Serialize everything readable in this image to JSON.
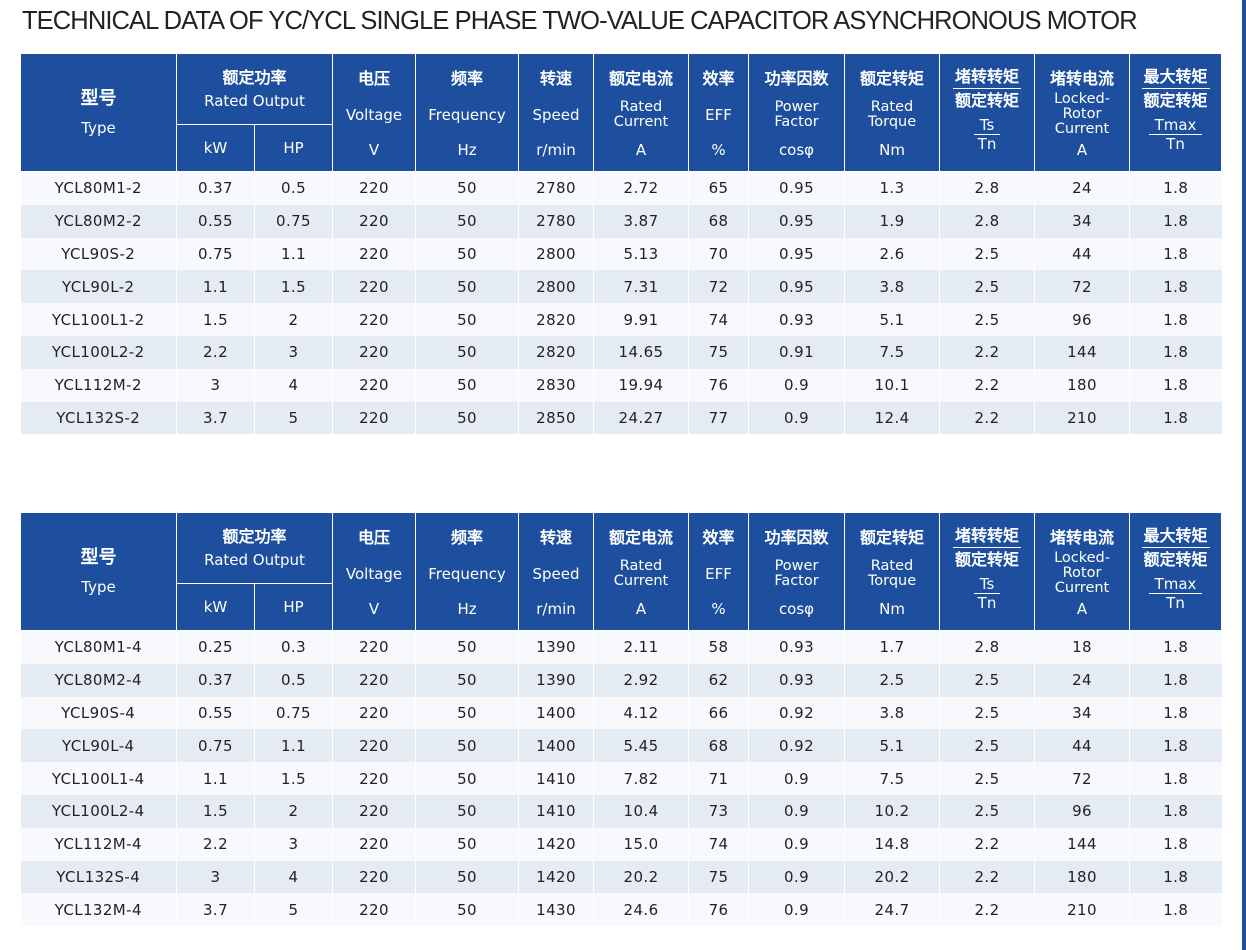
{
  "title": "TECHNICAL DATA OF YC/YCL SINGLE PHASE TWO-VALUE CAPACITOR ASYNCHRONOUS MOTOR",
  "header": {
    "type_zh": "型号",
    "type_en": "Type",
    "rated_output_zh": "额定功率",
    "rated_output_en": "Rated Output",
    "kw": "kW",
    "hp": "HP",
    "voltage_zh": "电压",
    "voltage_en": "Voltage",
    "voltage_unit": "V",
    "frequency_zh": "频率",
    "frequency_en": "Frequency",
    "frequency_unit": "Hz",
    "speed_zh": "转速",
    "speed_en": "Speed",
    "speed_unit": "r/min",
    "current_zh": "额定电流",
    "current_en_1": "Rated",
    "current_en_2": "Current",
    "current_unit": "A",
    "eff_zh": "效率",
    "eff_en": "EFF",
    "eff_unit": "%",
    "pf_zh": "功率因数",
    "pf_en_1": "Power",
    "pf_en_2": "Factor",
    "pf_unit": "cosφ",
    "torque_zh": "额定转矩",
    "torque_en_1": "Rated",
    "torque_en_2": "Torque",
    "torque_unit": "Nm",
    "ts_zh_1": "堵转转矩",
    "ts_zh_2": "额定转矩",
    "ts_num": "Ts",
    "ts_den": "Tn",
    "lrc_zh": "堵转电流",
    "lrc_en_1": "Locked-",
    "lrc_en_2": "Rotor",
    "lrc_en_3": "Current",
    "lrc_unit": "A",
    "tmax_zh_1": "最大转矩",
    "tmax_zh_2": "额定转矩",
    "tmax_num": "Tmax",
    "tmax_den": "Tn"
  },
  "tables": [
    {
      "rows": [
        [
          "YCL80M1-2",
          "0.37",
          "0.5",
          "220",
          "50",
          "2780",
          "2.72",
          "65",
          "0.95",
          "1.3",
          "2.8",
          "24",
          "1.8"
        ],
        [
          "YCL80M2-2",
          "0.55",
          "0.75",
          "220",
          "50",
          "2780",
          "3.87",
          "68",
          "0.95",
          "1.9",
          "2.8",
          "34",
          "1.8"
        ],
        [
          "YCL90S-2",
          "0.75",
          "1.1",
          "220",
          "50",
          "2800",
          "5.13",
          "70",
          "0.95",
          "2.6",
          "2.5",
          "44",
          "1.8"
        ],
        [
          "YCL90L-2",
          "1.1",
          "1.5",
          "220",
          "50",
          "2800",
          "7.31",
          "72",
          "0.95",
          "3.8",
          "2.5",
          "72",
          "1.8"
        ],
        [
          "YCL100L1-2",
          "1.5",
          "2",
          "220",
          "50",
          "2820",
          "9.91",
          "74",
          "0.93",
          "5.1",
          "2.5",
          "96",
          "1.8"
        ],
        [
          "YCL100L2-2",
          "2.2",
          "3",
          "220",
          "50",
          "2820",
          "14.65",
          "75",
          "0.91",
          "7.5",
          "2.2",
          "144",
          "1.8"
        ],
        [
          "YCL112M-2",
          "3",
          "4",
          "220",
          "50",
          "2830",
          "19.94",
          "76",
          "0.9",
          "10.1",
          "2.2",
          "180",
          "1.8"
        ],
        [
          "YCL132S-2",
          "3.7",
          "5",
          "220",
          "50",
          "2850",
          "24.27",
          "77",
          "0.9",
          "12.4",
          "2.2",
          "210",
          "1.8"
        ]
      ]
    },
    {
      "rows": [
        [
          "YCL80M1-4",
          "0.25",
          "0.3",
          "220",
          "50",
          "1390",
          "2.11",
          "58",
          "0.93",
          "1.7",
          "2.8",
          "18",
          "1.8"
        ],
        [
          "YCL80M2-4",
          "0.37",
          "0.5",
          "220",
          "50",
          "1390",
          "2.92",
          "62",
          "0.93",
          "2.5",
          "2.5",
          "24",
          "1.8"
        ],
        [
          "YCL90S-4",
          "0.55",
          "0.75",
          "220",
          "50",
          "1400",
          "4.12",
          "66",
          "0.92",
          "3.8",
          "2.5",
          "34",
          "1.8"
        ],
        [
          "YCL90L-4",
          "0.75",
          "1.1",
          "220",
          "50",
          "1400",
          "5.45",
          "68",
          "0.92",
          "5.1",
          "2.5",
          "44",
          "1.8"
        ],
        [
          "YCL100L1-4",
          "1.1",
          "1.5",
          "220",
          "50",
          "1410",
          "7.82",
          "71",
          "0.9",
          "7.5",
          "2.5",
          "72",
          "1.8"
        ],
        [
          "YCL100L2-4",
          "1.5",
          "2",
          "220",
          "50",
          "1410",
          "10.4",
          "73",
          "0.9",
          "10.2",
          "2.5",
          "96",
          "1.8"
        ],
        [
          "YCL112M-4",
          "2.2",
          "3",
          "220",
          "50",
          "1420",
          "15.0",
          "74",
          "0.9",
          "14.8",
          "2.2",
          "144",
          "1.8"
        ],
        [
          "YCL132S-4",
          "3",
          "4",
          "220",
          "50",
          "1420",
          "20.2",
          "75",
          "0.9",
          "20.2",
          "2.2",
          "180",
          "1.8"
        ],
        [
          "YCL132M-4",
          "3.7",
          "5",
          "220",
          "50",
          "1430",
          "24.6",
          "76",
          "0.9",
          "24.7",
          "2.2",
          "210",
          "1.8"
        ]
      ]
    }
  ]
}
